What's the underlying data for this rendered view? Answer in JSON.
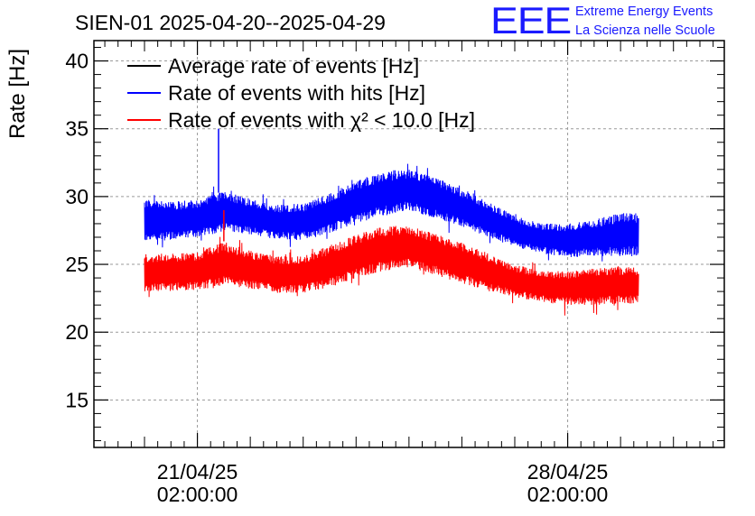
{
  "chart_data": {
    "type": "line",
    "title": "SIEN-01 2025-04-20--2025-04-29",
    "ylabel": "Rate [Hz]",
    "xlabel": "",
    "x_range_days": [
      0,
      9.34
    ],
    "ylim": [
      11.5,
      41.5
    ],
    "yticks": [
      15,
      20,
      25,
      30,
      35,
      40
    ],
    "ytick_labels": [
      "15",
      "20",
      "25",
      "30",
      "35",
      "40"
    ],
    "xticks": [
      {
        "day": 1.0,
        "label_date": "21/04/25",
        "label_time": "02:00:00"
      },
      {
        "day": 8.0,
        "label_date": "28/04/25",
        "label_time": "02:00:00"
      }
    ],
    "grid": true,
    "legend_position": "top-left",
    "legend": [
      {
        "name": "Average rate of events [Hz]",
        "color": "#000000"
      },
      {
        "name": "Rate of events with hits [Hz]",
        "color": "#0000ff"
      },
      {
        "name": "Rate of events with χ² < 10.0 [Hz]",
        "color": "#ff0000"
      }
    ],
    "series": [
      {
        "name": "Rate of events with hits [Hz]",
        "color": "#0000ff",
        "x_days": [
          0.0,
          0.5,
          1.0,
          1.5,
          2.0,
          2.5,
          3.0,
          3.5,
          4.0,
          4.5,
          5.0,
          5.5,
          6.0,
          6.5,
          7.0,
          7.5,
          8.0,
          8.5,
          9.0
        ],
        "low": [
          26.6,
          26.8,
          27.0,
          27.4,
          27.2,
          26.8,
          26.8,
          27.3,
          28.0,
          28.6,
          29.0,
          28.4,
          27.8,
          27.0,
          26.3,
          25.8,
          25.5,
          25.6,
          25.6
        ],
        "high": [
          29.8,
          29.6,
          29.8,
          30.4,
          29.8,
          29.4,
          29.5,
          30.2,
          31.2,
          31.8,
          32.0,
          31.4,
          30.6,
          29.6,
          28.6,
          28.0,
          28.0,
          28.3,
          28.8
        ],
        "spike": {
          "day": 1.4,
          "value": 35.0
        }
      },
      {
        "name": "Rate of events with χ² < 10.0 [Hz]",
        "color": "#ff0000",
        "x_days": [
          0.0,
          0.5,
          1.0,
          1.5,
          2.0,
          2.5,
          3.0,
          3.5,
          4.0,
          4.5,
          5.0,
          5.5,
          6.0,
          6.5,
          7.0,
          7.5,
          8.0,
          8.5,
          9.0
        ],
        "low": [
          23.0,
          23.0,
          23.1,
          23.4,
          23.2,
          22.9,
          22.9,
          23.3,
          24.0,
          24.5,
          24.8,
          24.2,
          23.6,
          23.0,
          22.6,
          22.2,
          22.0,
          22.0,
          22.1
        ],
        "high": [
          25.8,
          25.8,
          25.9,
          26.7,
          26.0,
          25.6,
          25.6,
          26.4,
          27.2,
          27.8,
          27.9,
          27.3,
          26.6,
          25.8,
          25.0,
          24.5,
          24.5,
          24.7,
          24.8
        ],
        "spike": {
          "day": 1.5,
          "value": 29.0
        }
      }
    ]
  },
  "logo": {
    "mark": "EEE",
    "line1": "Extreme Energy Events",
    "line2": "La Scienza nelle Scuole"
  },
  "colors": {
    "axis": "#000000",
    "grid": "#9a9a9a",
    "logo": "#1a1aff"
  }
}
